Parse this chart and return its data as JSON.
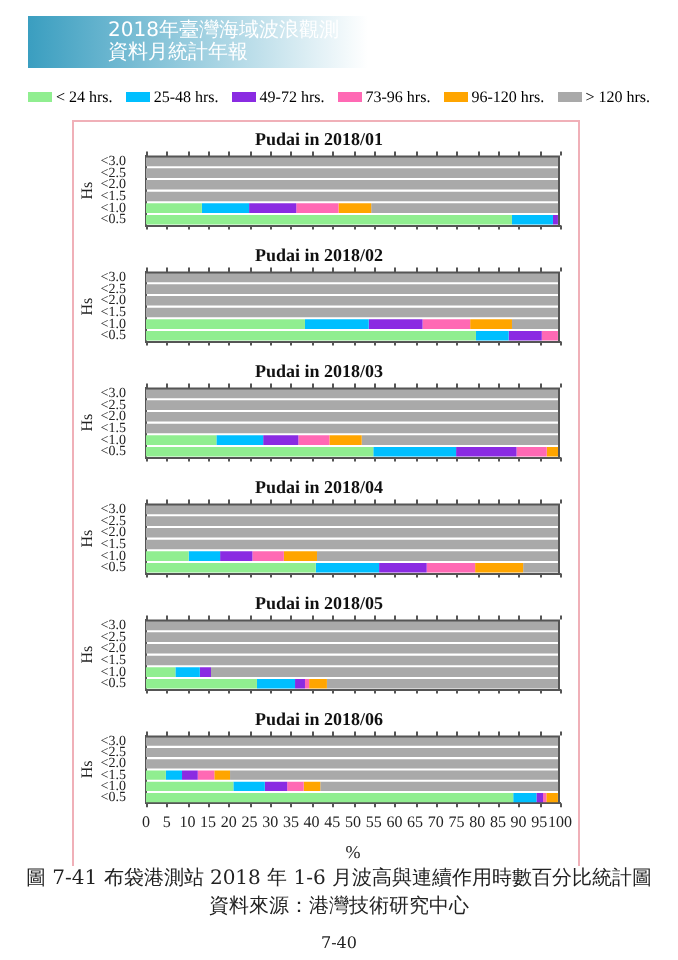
{
  "chart_data": [
    {
      "type": "bar",
      "orientation": "horizontal",
      "stacked": true,
      "title": "Pudai in 2018/01",
      "ylabel": "Hs",
      "categories": [
        "<3.0",
        "<2.5",
        "<2.0",
        "<1.5",
        "<1.0",
        "<0.5"
      ],
      "xlim": [
        0,
        100
      ],
      "xticks": [
        0,
        5,
        10,
        15,
        20,
        25,
        30,
        35,
        40,
        45,
        50,
        55,
        60,
        65,
        70,
        75,
        80,
        85,
        90,
        95,
        100
      ],
      "tick_labels": "y",
      "grid": false,
      "legend": "top",
      "annotations": [
        "2018年臺灣海域波浪觀測資料月統計年報"
      ],
      "series": [
        {
          "name": "< 24 hrs.",
          "color": "#90ee90",
          "values": [
            0,
            0,
            0,
            0,
            13.5,
            88.4
          ]
        },
        {
          "name": "25-48 hrs.",
          "color": "#00bfff",
          "values": [
            0,
            0,
            0,
            0,
            11.4,
            9.9
          ]
        },
        {
          "name": "49-72 hrs.",
          "color": "#8a2be2",
          "values": [
            0,
            0,
            0,
            0,
            11.4,
            1.2
          ]
        },
        {
          "name": "73-96 hrs.",
          "color": "#ff69b4",
          "values": [
            0,
            0,
            0,
            0,
            10.2,
            0
          ]
        },
        {
          "name": "96-120 hrs.",
          "color": "#ffa500",
          "values": [
            0,
            0,
            0,
            0,
            7.9,
            0
          ]
        },
        {
          "name": "> 120 hrs.",
          "color": "#a9a9a9",
          "values": [
            100,
            100,
            100,
            100,
            45.6,
            0.5
          ]
        }
      ]
    },
    {
      "type": "bar",
      "orientation": "horizontal",
      "stacked": true,
      "title": "Pudai in 2018/02",
      "ylabel": "Hs",
      "categories": [
        "<3.0",
        "<2.5",
        "<2.0",
        "<1.5",
        "<1.0",
        "<0.5"
      ],
      "xlim": [
        0,
        100
      ],
      "xticks": [
        0,
        5,
        10,
        15,
        20,
        25,
        30,
        35,
        40,
        45,
        50,
        55,
        60,
        65,
        70,
        75,
        80,
        85,
        90,
        95,
        100
      ],
      "tick_labels": "y",
      "grid": false,
      "series": [
        {
          "color": "#90ee90",
          "values": [
            0,
            0,
            0,
            0,
            38.4,
            79.7
          ]
        },
        {
          "color": "#00bfff",
          "values": [
            0,
            0,
            0,
            0,
            15.4,
            7.9
          ]
        },
        {
          "color": "#8a2be2",
          "values": [
            0,
            0,
            0,
            0,
            13.0,
            8.0
          ]
        },
        {
          "color": "#ff69b4",
          "values": [
            0,
            0,
            0,
            0,
            11.5,
            3.9
          ]
        },
        {
          "color": "#ffa500",
          "values": [
            0,
            0,
            0,
            0,
            10.1,
            0
          ]
        },
        {
          "color": "#a9a9a9",
          "values": [
            100,
            100,
            100,
            100,
            11.6,
            0.5
          ]
        }
      ]
    },
    {
      "type": "bar",
      "orientation": "horizontal",
      "stacked": true,
      "title": "Pudai in 2018/03",
      "ylabel": "Hs",
      "categories": [
        "<3.0",
        "<2.5",
        "<2.0",
        "<1.5",
        "<1.0",
        "<0.5"
      ],
      "xlim": [
        0,
        100
      ],
      "xticks": [
        0,
        5,
        10,
        15,
        20,
        25,
        30,
        35,
        40,
        45,
        50,
        55,
        60,
        65,
        70,
        75,
        80,
        85,
        90,
        95,
        100
      ],
      "tick_labels": "y",
      "grid": false,
      "series": [
        {
          "color": "#90ee90",
          "values": [
            0,
            0,
            0,
            0,
            17.0,
            54.9
          ]
        },
        {
          "color": "#00bfff",
          "values": [
            0,
            0,
            0,
            0,
            11.3,
            20.0
          ]
        },
        {
          "color": "#8a2be2",
          "values": [
            0,
            0,
            0,
            0,
            8.5,
            14.6
          ]
        },
        {
          "color": "#ff69b4",
          "values": [
            0,
            0,
            0,
            0,
            7.5,
            7.3
          ]
        },
        {
          "color": "#ffa500",
          "values": [
            0,
            0,
            0,
            0,
            7.8,
            3.2
          ]
        },
        {
          "color": "#a9a9a9",
          "values": [
            100,
            100,
            100,
            100,
            47.9,
            0
          ]
        }
      ]
    },
    {
      "type": "bar",
      "orientation": "horizontal",
      "stacked": true,
      "title": "Pudai in 2018/04",
      "ylabel": "Hs",
      "categories": [
        "<3.0",
        "<2.5",
        "<2.0",
        "<1.5",
        "<1.0",
        "<0.5"
      ],
      "xlim": [
        0,
        100
      ],
      "xticks": [
        0,
        5,
        10,
        15,
        20,
        25,
        30,
        35,
        40,
        45,
        50,
        55,
        60,
        65,
        70,
        75,
        80,
        85,
        90,
        95,
        100
      ],
      "tick_labels": "y",
      "grid": false,
      "series": [
        {
          "color": "#90ee90",
          "values": [
            0,
            0,
            0,
            0,
            10.3,
            41.0
          ]
        },
        {
          "color": "#00bfff",
          "values": [
            0,
            0,
            0,
            0,
            7.6,
            15.3
          ]
        },
        {
          "color": "#8a2be2",
          "values": [
            0,
            0,
            0,
            0,
            7.8,
            11.5
          ]
        },
        {
          "color": "#ff69b4",
          "values": [
            0,
            0,
            0,
            0,
            7.6,
            11.7
          ]
        },
        {
          "color": "#ffa500",
          "values": [
            0,
            0,
            0,
            0,
            8.0,
            11.6
          ]
        },
        {
          "color": "#a9a9a9",
          "values": [
            100,
            100,
            100,
            100,
            58.7,
            8.9
          ]
        }
      ]
    },
    {
      "type": "bar",
      "orientation": "horizontal",
      "stacked": true,
      "title": "Pudai in 2018/05",
      "ylabel": "Hs",
      "categories": [
        "<3.0",
        "<2.5",
        "<2.0",
        "<1.5",
        "<1.0",
        "<0.5"
      ],
      "xlim": [
        0,
        100
      ],
      "xticks": [
        0,
        5,
        10,
        15,
        20,
        25,
        30,
        35,
        40,
        45,
        50,
        55,
        60,
        65,
        70,
        75,
        80,
        85,
        90,
        95,
        100
      ],
      "tick_labels": "y",
      "grid": false,
      "series": [
        {
          "color": "#90ee90",
          "values": [
            0,
            0,
            0,
            0,
            7.1,
            26.8
          ]
        },
        {
          "color": "#00bfff",
          "values": [
            0,
            0,
            0,
            0,
            5.9,
            9.2
          ]
        },
        {
          "color": "#8a2be2",
          "values": [
            0,
            0,
            0,
            0,
            2.7,
            2.4
          ]
        },
        {
          "color": "#ff69b4",
          "values": [
            0,
            0,
            0,
            0,
            0,
            1.0
          ]
        },
        {
          "color": "#ffa500",
          "values": [
            0,
            0,
            0,
            0,
            0,
            4.3
          ]
        },
        {
          "color": "#a9a9a9",
          "values": [
            100,
            100,
            100,
            100,
            84.3,
            56.3
          ]
        }
      ]
    },
    {
      "type": "bar",
      "orientation": "horizontal",
      "stacked": true,
      "title": "Pudai in 2018/06",
      "ylabel": "Hs",
      "xlabel": "%",
      "categories": [
        "<3.0",
        "<2.5",
        "<2.0",
        "<1.5",
        "<1.0",
        "<0.5"
      ],
      "xlim": [
        0,
        100
      ],
      "xticks": [
        0,
        5,
        10,
        15,
        20,
        25,
        30,
        35,
        40,
        45,
        50,
        55,
        60,
        65,
        70,
        75,
        80,
        85,
        90,
        95,
        100
      ],
      "grid": false,
      "annotations": [
        "圖 7-41 布袋港測站 2018 年 1-6 月波高與連續作用時數百分比統計圖",
        "資料來源：港灣技術研究中心",
        "7-40"
      ],
      "series": [
        {
          "color": "#90ee90",
          "values": [
            0,
            0,
            0,
            4.8,
            21.1,
            88.7
          ]
        },
        {
          "color": "#00bfff",
          "values": [
            0,
            0,
            0,
            3.9,
            7.6,
            5.6
          ]
        },
        {
          "color": "#8a2be2",
          "values": [
            0,
            0,
            0,
            3.8,
            5.4,
            1.6
          ]
        },
        {
          "color": "#ff69b4",
          "values": [
            0,
            0,
            0,
            4.0,
            4.0,
            0.8
          ]
        },
        {
          "color": "#ffa500",
          "values": [
            0,
            0,
            0,
            3.8,
            4.0,
            2.8
          ]
        },
        {
          "color": "#a9a9a9",
          "values": [
            100,
            100,
            100,
            79.7,
            57.9,
            0.5
          ]
        }
      ]
    }
  ]
}
